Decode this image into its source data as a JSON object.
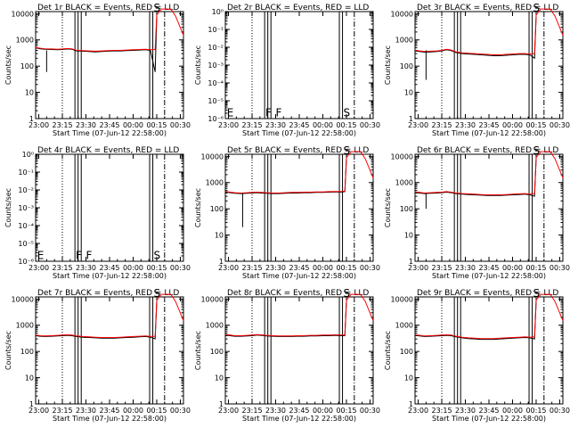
{
  "figure": {
    "xlabel": "Start Time (07-Jun-12 22:58:00)",
    "ylabel": "Counts/sec",
    "x_ticks": [
      "23:00",
      "23:15",
      "23:30",
      "23:45",
      "00:00",
      "00:15",
      "00:30"
    ],
    "x_ticks_right_panels": [
      "23:00",
      "23:15",
      "23:30",
      "23:45",
      "00:00",
      "00:15",
      "00:30"
    ],
    "y_ticks": [
      "1",
      "10",
      "100",
      "1000",
      "10000"
    ],
    "y_ticks_empty": [
      "10⁻⁶",
      "10⁻⁵",
      "10⁻⁴",
      "10⁻³",
      "10⁻²",
      "10⁻¹",
      "10⁰"
    ],
    "colors": {
      "events": "#000000",
      "lld": "#ff0000",
      "background": "#ffffff"
    }
  },
  "chart_data": [
    {
      "title": "Det 1r BLACK = Events, RED = LLD",
      "type": "line",
      "yscale": "log",
      "ylim": [
        1,
        12000
      ],
      "x_minutes": [
        0,
        3,
        6,
        10,
        14,
        17,
        20,
        23,
        26,
        30,
        34,
        38,
        42,
        46,
        50,
        54,
        58,
        62,
        66,
        70,
        73,
        76,
        77
      ],
      "series": [
        {
          "name": "Events",
          "color": "#000000",
          "values": [
            500,
            460,
            440,
            430,
            420,
            430,
            450,
            440,
            380,
            370,
            360,
            350,
            360,
            370,
            380,
            380,
            390,
            400,
            410,
            420,
            400,
            60,
            8000
          ]
        },
        {
          "name": "LLD",
          "color": "#ff0000",
          "values": [
            520,
            480,
            460,
            450,
            440,
            450,
            470,
            460,
            400,
            390,
            380,
            370,
            380,
            390,
            400,
            400,
            410,
            420,
            430,
            440,
            420,
            430,
            9000
          ]
        }
      ],
      "tail_lld": [
        [
          77,
          9000
        ],
        [
          80,
          15000
        ],
        [
          86,
          15000
        ],
        [
          89,
          8000
        ],
        [
          94,
          1500
        ]
      ],
      "vlines": [
        {
          "x": 17,
          "style": "dotted"
        },
        {
          "x": 25,
          "style": "solid"
        },
        {
          "x": 27,
          "style": "solid"
        },
        {
          "x": 29,
          "style": "solid"
        },
        {
          "x": 72.5,
          "style": "solid"
        },
        {
          "x": 74.5,
          "style": "solid"
        },
        {
          "x": 82,
          "style": "dashdot"
        }
      ],
      "markers": [
        {
          "label": "S",
          "x": 75,
          "y": 11000
        }
      ],
      "dip": [
        {
          "x": 7,
          "y": 60
        }
      ]
    },
    {
      "title": "Det 2r BLACK = Events, RED = LLD",
      "type": "line",
      "yscale": "log",
      "ylim": [
        1e-06,
        1
      ],
      "series": [],
      "vlines": [
        {
          "x": 17,
          "style": "dotted"
        },
        {
          "x": 25,
          "style": "solid"
        },
        {
          "x": 27,
          "style": "solid"
        },
        {
          "x": 29,
          "style": "solid"
        },
        {
          "x": 72.5,
          "style": "solid"
        },
        {
          "x": 74.5,
          "style": "solid"
        },
        {
          "x": 82,
          "style": "dashdot"
        }
      ],
      "markers": [
        {
          "label": "E",
          "x": 1,
          "y": 1.2e-06
        },
        {
          "label": "F",
          "x": 25.5,
          "y": 1.2e-06
        },
        {
          "label": "F",
          "x": 32,
          "y": 1.2e-06
        },
        {
          "label": "S",
          "x": 75,
          "y": 1.2e-06
        }
      ]
    },
    {
      "title": "Det 3r BLACK = Events, RED = LLD",
      "type": "line",
      "yscale": "log",
      "ylim": [
        1,
        12000
      ],
      "x_minutes": [
        0,
        3,
        6,
        10,
        14,
        17,
        20,
        23,
        26,
        30,
        34,
        38,
        42,
        46,
        50,
        54,
        58,
        62,
        66,
        70,
        73,
        76,
        77
      ],
      "series": [
        {
          "name": "Events",
          "color": "#000000",
          "values": [
            380,
            360,
            340,
            350,
            360,
            380,
            420,
            390,
            330,
            300,
            290,
            280,
            270,
            260,
            250,
            250,
            260,
            270,
            280,
            280,
            270,
            200,
            8000
          ]
        },
        {
          "name": "LLD",
          "color": "#ff0000",
          "values": [
            400,
            380,
            360,
            370,
            380,
            400,
            440,
            410,
            350,
            320,
            310,
            300,
            290,
            280,
            270,
            270,
            280,
            290,
            300,
            300,
            290,
            300,
            9000
          ]
        }
      ],
      "tail_lld": [
        [
          77,
          9000
        ],
        [
          80,
          15000
        ],
        [
          86,
          15000
        ],
        [
          89,
          8000
        ],
        [
          94,
          1500
        ]
      ],
      "vlines": [
        {
          "x": 17,
          "style": "dotted"
        },
        {
          "x": 25,
          "style": "solid"
        },
        {
          "x": 27,
          "style": "solid"
        },
        {
          "x": 29,
          "style": "solid"
        },
        {
          "x": 72.5,
          "style": "solid"
        },
        {
          "x": 74.5,
          "style": "solid"
        },
        {
          "x": 82,
          "style": "dashdot"
        }
      ],
      "markers": [
        {
          "label": "S",
          "x": 75,
          "y": 11000
        }
      ],
      "dip": [
        {
          "x": 7,
          "y": 30
        }
      ]
    },
    {
      "title": "Det 4r BLACK = Events, RED = LLD",
      "type": "line",
      "yscale": "log",
      "ylim": [
        1e-06,
        1
      ],
      "series": [],
      "vlines": [
        {
          "x": 17,
          "style": "dotted"
        },
        {
          "x": 25,
          "style": "solid"
        },
        {
          "x": 27,
          "style": "solid"
        },
        {
          "x": 29,
          "style": "solid"
        },
        {
          "x": 72.5,
          "style": "solid"
        },
        {
          "x": 74.5,
          "style": "solid"
        },
        {
          "x": 82,
          "style": "dashdot"
        }
      ],
      "markers": [
        {
          "label": "E",
          "x": 1,
          "y": 1.2e-06
        },
        {
          "label": "F",
          "x": 25.5,
          "y": 1.2e-06
        },
        {
          "label": "F",
          "x": 32,
          "y": 1.2e-06
        },
        {
          "label": "S",
          "x": 75,
          "y": 1.2e-06
        }
      ]
    },
    {
      "title": "Det 5r BLACK = Events, RED = LLD",
      "type": "line",
      "yscale": "log",
      "ylim": [
        1,
        12000
      ],
      "x_minutes": [
        0,
        3,
        6,
        10,
        14,
        17,
        20,
        23,
        26,
        30,
        34,
        38,
        42,
        46,
        50,
        54,
        58,
        62,
        66,
        70,
        73,
        76,
        77
      ],
      "series": [
        {
          "name": "Events",
          "color": "#000000",
          "values": [
            440,
            410,
            390,
            380,
            390,
            400,
            410,
            400,
            390,
            380,
            380,
            390,
            400,
            400,
            410,
            410,
            420,
            420,
            430,
            440,
            430,
            450,
            8000
          ]
        },
        {
          "name": "LLD",
          "color": "#ff0000",
          "values": [
            460,
            430,
            410,
            400,
            410,
            420,
            430,
            420,
            410,
            400,
            400,
            410,
            420,
            420,
            430,
            430,
            440,
            440,
            450,
            460,
            450,
            470,
            9000
          ]
        }
      ],
      "tail_lld": [
        [
          77,
          9000
        ],
        [
          80,
          15000
        ],
        [
          86,
          15000
        ],
        [
          89,
          8000
        ],
        [
          94,
          1500
        ]
      ],
      "vlines": [
        {
          "x": 17,
          "style": "dotted"
        },
        {
          "x": 25,
          "style": "solid"
        },
        {
          "x": 27,
          "style": "solid"
        },
        {
          "x": 29,
          "style": "solid"
        },
        {
          "x": 72.5,
          "style": "solid"
        },
        {
          "x": 74.5,
          "style": "solid"
        },
        {
          "x": 82,
          "style": "dashdot"
        }
      ],
      "markers": [
        {
          "label": "S",
          "x": 75,
          "y": 11000
        }
      ],
      "dip": [
        {
          "x": 11,
          "y": 20
        }
      ]
    },
    {
      "title": "Det 6r BLACK = Events, RED = LLD",
      "type": "line",
      "yscale": "log",
      "ylim": [
        1,
        12000
      ],
      "x_minutes": [
        0,
        3,
        6,
        10,
        14,
        17,
        20,
        23,
        26,
        30,
        34,
        38,
        42,
        46,
        50,
        54,
        58,
        62,
        66,
        70,
        73,
        76,
        77
      ],
      "series": [
        {
          "name": "Events",
          "color": "#000000",
          "values": [
            420,
            400,
            380,
            390,
            400,
            410,
            430,
            410,
            380,
            360,
            350,
            340,
            330,
            320,
            320,
            320,
            330,
            340,
            350,
            360,
            340,
            300,
            8000
          ]
        },
        {
          "name": "LLD",
          "color": "#ff0000",
          "values": [
            440,
            420,
            400,
            410,
            420,
            430,
            450,
            430,
            400,
            380,
            370,
            360,
            350,
            340,
            340,
            340,
            350,
            360,
            370,
            380,
            360,
            380,
            9000
          ]
        }
      ],
      "tail_lld": [
        [
          77,
          9000
        ],
        [
          80,
          15000
        ],
        [
          86,
          15000
        ],
        [
          89,
          8000
        ],
        [
          94,
          1500
        ]
      ],
      "vlines": [
        {
          "x": 17,
          "style": "dotted"
        },
        {
          "x": 25,
          "style": "solid"
        },
        {
          "x": 27,
          "style": "solid"
        },
        {
          "x": 29,
          "style": "solid"
        },
        {
          "x": 72.5,
          "style": "solid"
        },
        {
          "x": 74.5,
          "style": "solid"
        },
        {
          "x": 82,
          "style": "dashdot"
        }
      ],
      "markers": [
        {
          "label": "S",
          "x": 75,
          "y": 11000
        }
      ],
      "dip": [
        {
          "x": 7,
          "y": 100
        }
      ]
    },
    {
      "title": "Det 7r BLACK = Events, RED = LLD",
      "type": "line",
      "yscale": "log",
      "ylim": [
        1,
        12000
      ],
      "x_minutes": [
        0,
        3,
        6,
        10,
        14,
        17,
        20,
        23,
        26,
        30,
        34,
        38,
        42,
        46,
        50,
        54,
        58,
        62,
        66,
        70,
        73,
        76,
        77
      ],
      "series": [
        {
          "name": "Events",
          "color": "#000000",
          "values": [
            400,
            380,
            370,
            380,
            390,
            400,
            410,
            400,
            370,
            350,
            340,
            330,
            320,
            320,
            320,
            330,
            340,
            350,
            360,
            370,
            350,
            300,
            8000
          ]
        },
        {
          "name": "LLD",
          "color": "#ff0000",
          "values": [
            420,
            400,
            390,
            400,
            410,
            420,
            430,
            420,
            390,
            370,
            360,
            350,
            340,
            340,
            340,
            350,
            360,
            370,
            380,
            390,
            370,
            380,
            9000
          ]
        }
      ],
      "tail_lld": [
        [
          77,
          9000
        ],
        [
          80,
          15000
        ],
        [
          86,
          15000
        ],
        [
          89,
          8000
        ],
        [
          94,
          1500
        ]
      ],
      "vlines": [
        {
          "x": 17,
          "style": "dotted"
        },
        {
          "x": 25,
          "style": "solid"
        },
        {
          "x": 27,
          "style": "solid"
        },
        {
          "x": 29,
          "style": "solid"
        },
        {
          "x": 72.5,
          "style": "solid"
        },
        {
          "x": 74.5,
          "style": "solid"
        },
        {
          "x": 82,
          "style": "dashdot"
        }
      ],
      "markers": [
        {
          "label": "S",
          "x": 75,
          "y": 11000
        }
      ]
    },
    {
      "title": "Det 8r BLACK = Events, RED = LLD",
      "type": "line",
      "yscale": "log",
      "ylim": [
        1,
        12000
      ],
      "x_minutes": [
        0,
        3,
        6,
        10,
        14,
        17,
        20,
        23,
        26,
        30,
        34,
        38,
        42,
        46,
        50,
        54,
        58,
        62,
        66,
        70,
        73,
        76,
        77
      ],
      "series": [
        {
          "name": "Events",
          "color": "#000000",
          "values": [
            420,
            400,
            380,
            380,
            390,
            400,
            420,
            410,
            390,
            380,
            370,
            370,
            370,
            380,
            380,
            390,
            390,
            400,
            400,
            410,
            400,
            400,
            8000
          ]
        },
        {
          "name": "LLD",
          "color": "#ff0000",
          "values": [
            440,
            420,
            400,
            400,
            410,
            420,
            440,
            430,
            410,
            400,
            390,
            390,
            390,
            400,
            400,
            410,
            410,
            420,
            420,
            430,
            420,
            420,
            9000
          ]
        }
      ],
      "tail_lld": [
        [
          77,
          9000
        ],
        [
          80,
          15000
        ],
        [
          86,
          15000
        ],
        [
          89,
          8000
        ],
        [
          94,
          1500
        ]
      ],
      "vlines": [
        {
          "x": 17,
          "style": "dotted"
        },
        {
          "x": 25,
          "style": "solid"
        },
        {
          "x": 27,
          "style": "solid"
        },
        {
          "x": 29,
          "style": "solid"
        },
        {
          "x": 72.5,
          "style": "solid"
        },
        {
          "x": 74.5,
          "style": "solid"
        },
        {
          "x": 82,
          "style": "dashdot"
        }
      ],
      "markers": [
        {
          "label": "S",
          "x": 75,
          "y": 11000
        }
      ]
    },
    {
      "title": "Det 9r BLACK = Events, RED = LLD",
      "type": "line",
      "yscale": "log",
      "ylim": [
        1,
        12000
      ],
      "x_minutes": [
        0,
        3,
        6,
        10,
        14,
        17,
        20,
        23,
        26,
        30,
        34,
        38,
        42,
        46,
        50,
        54,
        58,
        62,
        66,
        70,
        73,
        76,
        77
      ],
      "series": [
        {
          "name": "Events",
          "color": "#000000",
          "values": [
            410,
            390,
            370,
            380,
            390,
            400,
            410,
            400,
            360,
            330,
            310,
            300,
            290,
            290,
            290,
            300,
            310,
            320,
            330,
            340,
            330,
            300,
            8000
          ]
        },
        {
          "name": "LLD",
          "color": "#ff0000",
          "values": [
            430,
            410,
            390,
            400,
            410,
            420,
            430,
            420,
            380,
            350,
            330,
            320,
            310,
            310,
            310,
            320,
            330,
            340,
            350,
            360,
            350,
            360,
            9000
          ]
        }
      ],
      "tail_lld": [
        [
          77,
          9000
        ],
        [
          80,
          15000
        ],
        [
          86,
          15000
        ],
        [
          89,
          8000
        ],
        [
          94,
          1500
        ]
      ],
      "vlines": [
        {
          "x": 17,
          "style": "dotted"
        },
        {
          "x": 25,
          "style": "solid"
        },
        {
          "x": 27,
          "style": "solid"
        },
        {
          "x": 29,
          "style": "solid"
        },
        {
          "x": 72.5,
          "style": "solid"
        },
        {
          "x": 74.5,
          "style": "solid"
        },
        {
          "x": 82,
          "style": "dashdot"
        }
      ],
      "markers": [
        {
          "label": "S",
          "x": 75,
          "y": 11000
        }
      ]
    }
  ]
}
